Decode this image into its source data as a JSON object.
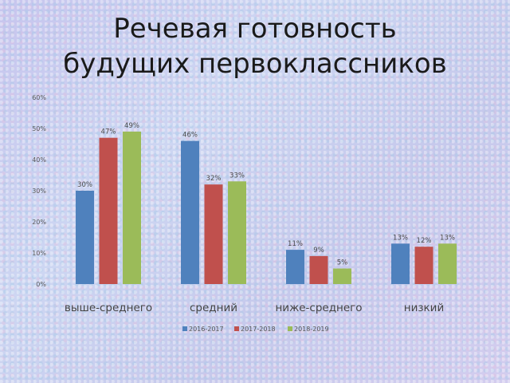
{
  "slide": {
    "title_line1": "Речевая готовность",
    "title_line2": "будущих первоклассников"
  },
  "chart_data": {
    "type": "bar",
    "title": "",
    "xlabel": "",
    "ylabel": "",
    "ylim": [
      0,
      60
    ],
    "yticks": [
      0,
      10,
      20,
      30,
      40,
      50,
      60
    ],
    "yticklabels": [
      "0%",
      "10%",
      "20%",
      "30%",
      "40%",
      "50%",
      "60%"
    ],
    "grid": false,
    "legend_position": "bottom",
    "categories": [
      "выше-среднего",
      "средний",
      "ниже-среднего",
      "низкий"
    ],
    "series": [
      {
        "name": "2016-2017",
        "color": "#4f81bd",
        "values": [
          30,
          46,
          11,
          13
        ],
        "labels": [
          "30%",
          "46%",
          "11%",
          "13%"
        ]
      },
      {
        "name": "2017-2018",
        "color": "#c0504d",
        "values": [
          47,
          32,
          9,
          12
        ],
        "labels": [
          "47%",
          "32%",
          "9%",
          "12%"
        ]
      },
      {
        "name": "2018-2019",
        "color": "#9bbb59",
        "values": [
          49,
          33,
          5,
          13
        ],
        "labels": [
          "49%",
          "33%",
          "5%",
          "13%"
        ]
      }
    ]
  }
}
